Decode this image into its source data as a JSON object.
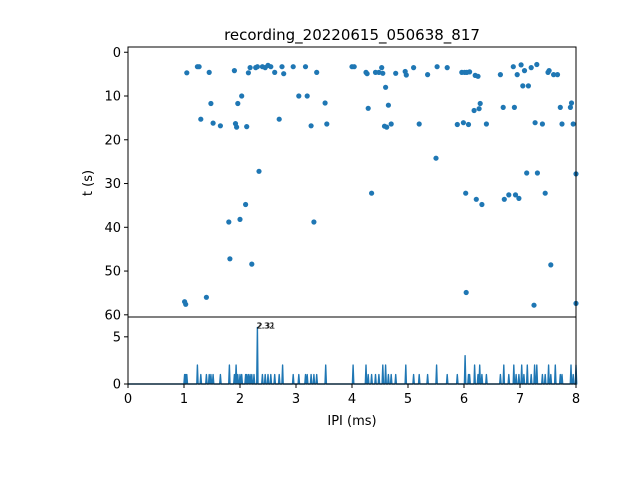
{
  "chart_data": [
    {
      "type": "scatter",
      "title": "recording_20220615_050638_817",
      "xlabel": "",
      "ylabel": "t (s)",
      "xlim": [
        0,
        8
      ],
      "ylim": [
        60.5,
        -1.2
      ],
      "y_inverted": true,
      "yticks": [
        0,
        10,
        20,
        30,
        40,
        50,
        60
      ],
      "marker_color": "#1f77b4",
      "points": [
        [
          1.01,
          57.0
        ],
        [
          1.03,
          57.6
        ],
        [
          1.05,
          4.7
        ],
        [
          1.24,
          3.3
        ],
        [
          1.27,
          3.3
        ],
        [
          1.3,
          15.3
        ],
        [
          1.4,
          56.0
        ],
        [
          1.45,
          4.6
        ],
        [
          1.48,
          11.7
        ],
        [
          1.52,
          16.2
        ],
        [
          1.65,
          16.8
        ],
        [
          1.8,
          38.8
        ],
        [
          1.82,
          47.2
        ],
        [
          1.9,
          4.2
        ],
        [
          1.92,
          16.3
        ],
        [
          1.94,
          17.1
        ],
        [
          1.96,
          11.7
        ],
        [
          2.0,
          38.2
        ],
        [
          2.03,
          10.0
        ],
        [
          2.1,
          34.8
        ],
        [
          2.12,
          17.0
        ],
        [
          2.15,
          4.7
        ],
        [
          2.18,
          3.5
        ],
        [
          2.21,
          48.4
        ],
        [
          2.28,
          3.5
        ],
        [
          2.31,
          3.3
        ],
        [
          2.34,
          27.2
        ],
        [
          2.4,
          3.3
        ],
        [
          2.45,
          3.5
        ],
        [
          2.5,
          3.0
        ],
        [
          2.55,
          3.3
        ],
        [
          2.62,
          4.6
        ],
        [
          2.7,
          15.3
        ],
        [
          2.75,
          3.3
        ],
        [
          2.78,
          4.9
        ],
        [
          2.95,
          3.3
        ],
        [
          3.05,
          10.0
        ],
        [
          3.17,
          3.3
        ],
        [
          3.2,
          10.0
        ],
        [
          3.27,
          16.8
        ],
        [
          3.32,
          38.8
        ],
        [
          3.37,
          4.6
        ],
        [
          3.52,
          11.6
        ],
        [
          3.55,
          16.4
        ],
        [
          4.0,
          3.3
        ],
        [
          4.04,
          3.3
        ],
        [
          4.25,
          4.6
        ],
        [
          4.27,
          4.9
        ],
        [
          4.29,
          12.8
        ],
        [
          4.35,
          32.2
        ],
        [
          4.42,
          4.6
        ],
        [
          4.48,
          4.6
        ],
        [
          4.53,
          3.5
        ],
        [
          4.55,
          4.8
        ],
        [
          4.58,
          16.9
        ],
        [
          4.6,
          8.0
        ],
        [
          4.62,
          17.1
        ],
        [
          4.65,
          12.1
        ],
        [
          4.7,
          16.4
        ],
        [
          4.78,
          4.8
        ],
        [
          4.95,
          4.4
        ],
        [
          4.97,
          5.2
        ],
        [
          5.1,
          3.5
        ],
        [
          5.2,
          16.4
        ],
        [
          5.35,
          5.1
        ],
        [
          5.5,
          24.2
        ],
        [
          5.52,
          3.3
        ],
        [
          5.7,
          3.5
        ],
        [
          5.88,
          16.5
        ],
        [
          5.96,
          4.6
        ],
        [
          5.99,
          16.1
        ],
        [
          6.01,
          4.6
        ],
        [
          6.03,
          32.2
        ],
        [
          6.04,
          54.9
        ],
        [
          6.05,
          4.6
        ],
        [
          6.08,
          16.5
        ],
        [
          6.1,
          4.5
        ],
        [
          6.18,
          13.3
        ],
        [
          6.2,
          5.3
        ],
        [
          6.22,
          33.6
        ],
        [
          6.25,
          5.5
        ],
        [
          6.27,
          12.9
        ],
        [
          6.29,
          11.7
        ],
        [
          6.32,
          34.8
        ],
        [
          6.4,
          16.4
        ],
        [
          6.65,
          5.1
        ],
        [
          6.7,
          12.6
        ],
        [
          6.72,
          33.6
        ],
        [
          6.8,
          32.6
        ],
        [
          6.88,
          3.3
        ],
        [
          6.9,
          12.6
        ],
        [
          6.92,
          32.6
        ],
        [
          6.95,
          5.1
        ],
        [
          6.98,
          33.4
        ],
        [
          7.02,
          2.9
        ],
        [
          7.05,
          7.7
        ],
        [
          7.08,
          4.2
        ],
        [
          7.12,
          27.6
        ],
        [
          7.15,
          7.7
        ],
        [
          7.2,
          3.5
        ],
        [
          7.25,
          57.8
        ],
        [
          7.27,
          16.1
        ],
        [
          7.3,
          2.8
        ],
        [
          7.31,
          27.6
        ],
        [
          7.4,
          16.4
        ],
        [
          7.45,
          32.2
        ],
        [
          7.5,
          4.6
        ],
        [
          7.52,
          4.2
        ],
        [
          7.55,
          48.6
        ],
        [
          7.6,
          5.1
        ],
        [
          7.67,
          5.1
        ],
        [
          7.72,
          12.6
        ],
        [
          7.75,
          16.4
        ],
        [
          7.9,
          12.6
        ],
        [
          7.92,
          11.6
        ],
        [
          7.95,
          16.4
        ],
        [
          8.0,
          27.8
        ],
        [
          8.0,
          57.4
        ]
      ]
    },
    {
      "type": "line",
      "xlabel": "IPI (ms)",
      "ylabel": "",
      "xlim": [
        0,
        8
      ],
      "ylim": [
        0,
        7.1
      ],
      "xticks": [
        0,
        1,
        2,
        3,
        4,
        5,
        6,
        7,
        8
      ],
      "yticks": [
        0,
        5
      ],
      "color": "#1f77b4",
      "annotations": [
        {
          "text": "2.32",
          "x": 2.32,
          "y": 6
        },
        {
          "text": "2.31",
          "x": 2.31,
          "y": 6
        }
      ],
      "peaks": [
        [
          1.01,
          1
        ],
        [
          1.03,
          1
        ],
        [
          1.05,
          1
        ],
        [
          1.24,
          2
        ],
        [
          1.3,
          1
        ],
        [
          1.4,
          1
        ],
        [
          1.45,
          1
        ],
        [
          1.48,
          1
        ],
        [
          1.52,
          1
        ],
        [
          1.65,
          1
        ],
        [
          1.81,
          2
        ],
        [
          1.9,
          1
        ],
        [
          1.93,
          2
        ],
        [
          1.96,
          1
        ],
        [
          2.0,
          1
        ],
        [
          2.03,
          1
        ],
        [
          2.1,
          1
        ],
        [
          2.12,
          1
        ],
        [
          2.15,
          1
        ],
        [
          2.18,
          1
        ],
        [
          2.21,
          1
        ],
        [
          2.25,
          1
        ],
        [
          2.31,
          6
        ],
        [
          2.4,
          1
        ],
        [
          2.45,
          1
        ],
        [
          2.5,
          1
        ],
        [
          2.55,
          1
        ],
        [
          2.62,
          1
        ],
        [
          2.7,
          1
        ],
        [
          2.76,
          2
        ],
        [
          2.95,
          1
        ],
        [
          3.05,
          1
        ],
        [
          3.17,
          1
        ],
        [
          3.2,
          1
        ],
        [
          3.27,
          1
        ],
        [
          3.32,
          1
        ],
        [
          3.37,
          1
        ],
        [
          3.53,
          2
        ],
        [
          4.02,
          2
        ],
        [
          4.25,
          2
        ],
        [
          4.29,
          1
        ],
        [
          4.35,
          1
        ],
        [
          4.42,
          1
        ],
        [
          4.48,
          1
        ],
        [
          4.55,
          2
        ],
        [
          4.6,
          2
        ],
        [
          4.65,
          1
        ],
        [
          4.7,
          1
        ],
        [
          4.78,
          1
        ],
        [
          4.96,
          2
        ],
        [
          5.1,
          1
        ],
        [
          5.2,
          1
        ],
        [
          5.35,
          1
        ],
        [
          5.51,
          2
        ],
        [
          5.7,
          1
        ],
        [
          5.88,
          1
        ],
        [
          6.02,
          3
        ],
        [
          6.08,
          1
        ],
        [
          6.1,
          1
        ],
        [
          6.19,
          2
        ],
        [
          6.25,
          1
        ],
        [
          6.28,
          2
        ],
        [
          6.32,
          1
        ],
        [
          6.4,
          1
        ],
        [
          6.65,
          1
        ],
        [
          6.71,
          2
        ],
        [
          6.8,
          1
        ],
        [
          6.89,
          2
        ],
        [
          6.93,
          1
        ],
        [
          6.98,
          1
        ],
        [
          7.03,
          2
        ],
        [
          7.07,
          1
        ],
        [
          7.13,
          2
        ],
        [
          7.2,
          1
        ],
        [
          7.26,
          2
        ],
        [
          7.3,
          2
        ],
        [
          7.4,
          1
        ],
        [
          7.45,
          1
        ],
        [
          7.51,
          2
        ],
        [
          7.55,
          1
        ],
        [
          7.63,
          2
        ],
        [
          7.72,
          1
        ],
        [
          7.75,
          1
        ],
        [
          7.91,
          2
        ],
        [
          7.95,
          1
        ],
        [
          8.0,
          2
        ]
      ]
    }
  ]
}
